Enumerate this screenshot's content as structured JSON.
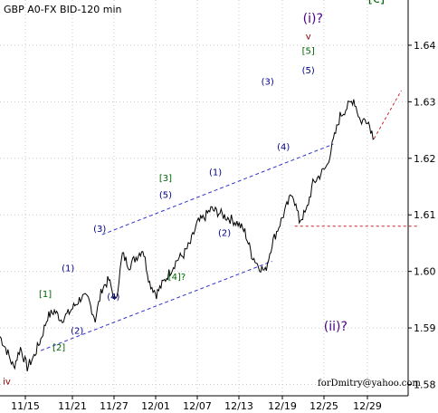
{
  "chart_data": {
    "type": "line",
    "title": "GBP A0-FX BID-120 min",
    "watermark": "forDmitry@yahoo.com",
    "x_tick_labels": [
      "11/15",
      "11/21",
      "11/27",
      "12/01",
      "12/07",
      "12/13",
      "12/19",
      "12/25",
      "12/29"
    ],
    "y_ticks": [
      1.58,
      1.59,
      1.6,
      1.61,
      1.62,
      1.63,
      1.64
    ],
    "y_tick_labels": [
      "1.58",
      "1.59",
      "1.60",
      "1.61",
      "1.62",
      "1.63",
      "1.64"
    ],
    "ylim": [
      1.578,
      1.648
    ],
    "grid": true,
    "price_anchors": [
      [
        0,
        1.5885
      ],
      [
        3,
        1.586
      ],
      [
        6,
        1.583
      ],
      [
        9,
        1.5865
      ],
      [
        12,
        1.583
      ],
      [
        15,
        1.585
      ],
      [
        18,
        1.588
      ],
      [
        21,
        1.592
      ],
      [
        24,
        1.593
      ],
      [
        27,
        1.5915
      ],
      [
        30,
        1.5925
      ],
      [
        33,
        1.594
      ],
      [
        36,
        1.5955
      ],
      [
        39,
        1.595
      ],
      [
        42,
        1.5915
      ],
      [
        45,
        1.597
      ],
      [
        48,
        1.5985
      ],
      [
        51,
        1.5945
      ],
      [
        54,
        1.603
      ],
      [
        57,
        1.601
      ],
      [
        60,
        1.6025
      ],
      [
        63,
        1.604
      ],
      [
        66,
        1.598
      ],
      [
        69,
        1.596
      ],
      [
        72,
        1.598
      ],
      [
        75,
        1.6
      ],
      [
        78,
        1.602
      ],
      [
        81,
        1.603
      ],
      [
        84,
        1.605
      ],
      [
        87,
        1.6085
      ],
      [
        90,
        1.6095
      ],
      [
        93,
        1.611
      ],
      [
        96,
        1.6105
      ],
      [
        99,
        1.6098
      ],
      [
        102,
        1.6092
      ],
      [
        105,
        1.6085
      ],
      [
        108,
        1.607
      ],
      [
        111,
        1.603
      ],
      [
        114,
        1.601
      ],
      [
        117,
        1.6
      ],
      [
        120,
        1.605
      ],
      [
        123,
        1.608
      ],
      [
        126,
        1.611
      ],
      [
        129,
        1.614
      ],
      [
        132,
        1.609
      ],
      [
        135,
        1.6105
      ],
      [
        138,
        1.6155
      ],
      [
        141,
        1.617
      ],
      [
        144,
        1.6185
      ],
      [
        147,
        1.623
      ],
      [
        150,
        1.6275
      ],
      [
        153,
        1.629
      ],
      [
        156,
        1.6305
      ],
      [
        159,
        1.6265
      ],
      [
        162,
        1.627
      ],
      [
        165,
        1.6235
      ]
    ],
    "channel_lines": [
      {
        "name": "upper channel line",
        "from": [
          45,
          1.6065
        ],
        "to": [
          147,
          1.6225
        ]
      },
      {
        "name": "lower channel line",
        "from": [
          18,
          1.586
        ],
        "to": [
          120,
          1.6018
        ]
      }
    ],
    "projections": [
      {
        "name": "wave 5 target",
        "from": [
          165,
          1.6235
        ],
        "to": [
          177,
          1.632
        ]
      },
      {
        "name": "wave 2 level",
        "from": [
          130,
          1.608
        ],
        "to": [
          184,
          1.608
        ]
      }
    ],
    "wave_labels": [
      {
        "text": "iv",
        "x": 3,
        "y": 1.58,
        "color": "#8b0000"
      },
      {
        "text": "[1]",
        "x": 20,
        "y": 1.5955,
        "color": "#006400"
      },
      {
        "text": "[2]",
        "x": 26,
        "y": 1.586,
        "color": "#006400"
      },
      {
        "text": "(2)",
        "x": 34,
        "y": 1.589,
        "color": "#00008b"
      },
      {
        "text": "(1)",
        "x": 30,
        "y": 1.6,
        "color": "#00008b"
      },
      {
        "text": "(3)",
        "x": 44,
        "y": 1.607,
        "color": "#00008b"
      },
      {
        "text": "(4)",
        "x": 50,
        "y": 1.595,
        "color": "#00008b"
      },
      {
        "text": "(5)",
        "x": 73,
        "y": 1.613,
        "color": "#00008b"
      },
      {
        "text": "[3]",
        "x": 73,
        "y": 1.616,
        "color": "#006400"
      },
      {
        "text": "[4]?",
        "x": 78,
        "y": 1.5985,
        "color": "#006400"
      },
      {
        "text": "(1)",
        "x": 95,
        "y": 1.617,
        "color": "#00008b"
      },
      {
        "text": "(2)",
        "x": 99,
        "y": 1.6063,
        "color": "#00008b"
      },
      {
        "text": "(3)",
        "x": 118,
        "y": 1.633,
        "color": "#00008b"
      },
      {
        "text": "(4)",
        "x": 125,
        "y": 1.6215,
        "color": "#00008b"
      },
      {
        "text": "(5)",
        "x": 136,
        "y": 1.635,
        "color": "#00008b"
      },
      {
        "text": "[5]",
        "x": 136,
        "y": 1.6385,
        "color": "#006400"
      },
      {
        "text": "v",
        "x": 136,
        "y": 1.641,
        "color": "#8b0000"
      },
      {
        "text": "(i)?",
        "x": 138,
        "y": 1.644,
        "color": "#4b0082"
      },
      {
        "text": "[c]",
        "x": 166,
        "y": 1.6475,
        "color": "#006400"
      },
      {
        "text": "(ii)?",
        "x": 148,
        "y": 1.5895,
        "color": "#4b0082"
      }
    ]
  }
}
